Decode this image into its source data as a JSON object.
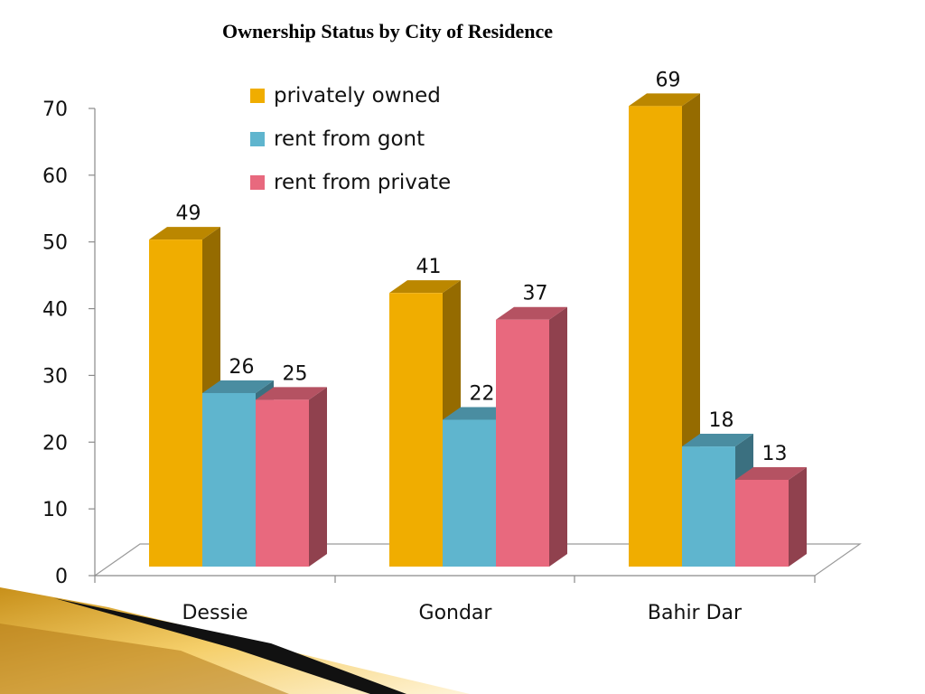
{
  "chart_data": {
    "type": "bar",
    "title": "Ownership Status by City of Residence",
    "categories": [
      "Dessie",
      "Gondar",
      "Bahir Dar"
    ],
    "series": [
      {
        "name": "privately owned",
        "values": [
          49,
          41,
          69
        ],
        "color": "#F0AD00"
      },
      {
        "name": "rent from gont",
        "values": [
          26,
          22,
          18
        ],
        "color": "#5FB5CE"
      },
      {
        "name": "rent from private",
        "values": [
          25,
          37,
          13
        ],
        "color": "#E8697E"
      }
    ],
    "ylim": [
      0,
      70
    ],
    "yticks": [
      0,
      10,
      20,
      30,
      40,
      50,
      60,
      70
    ],
    "xlabel": "",
    "ylabel": "",
    "grid": false,
    "legend_position": "top-center",
    "bar_style": "3d"
  }
}
